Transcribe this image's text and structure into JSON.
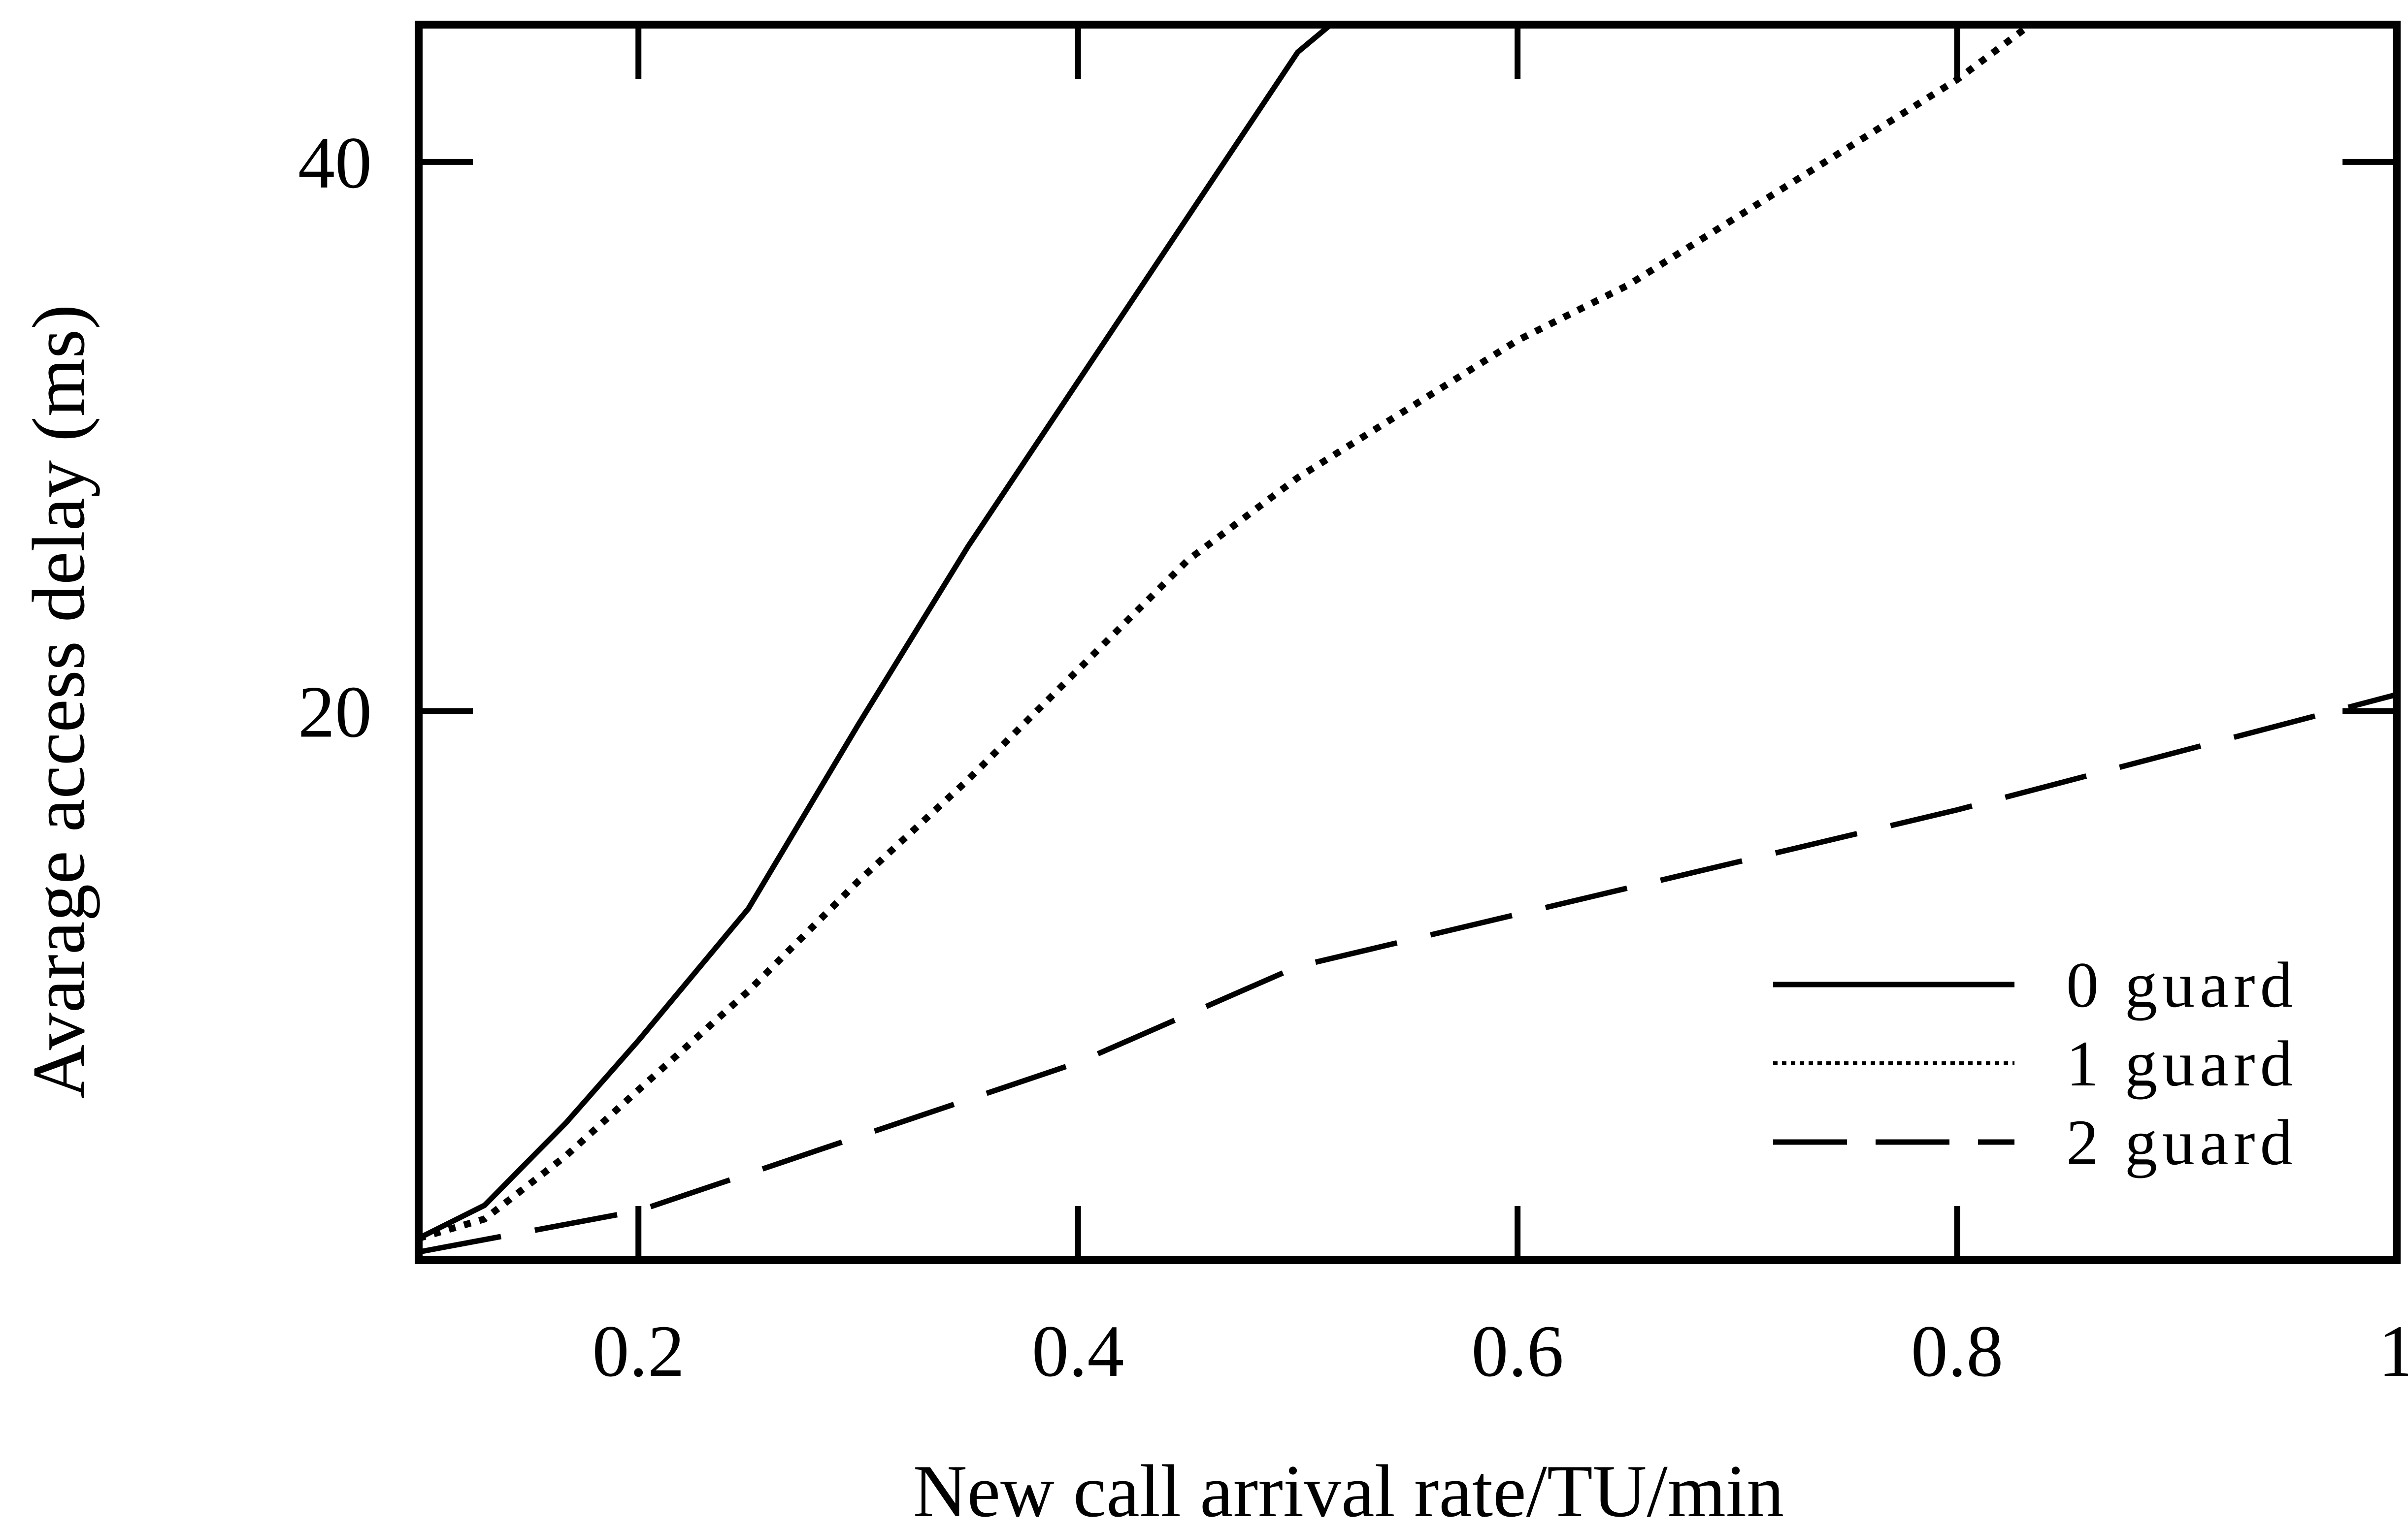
{
  "chart_data": {
    "type": "line",
    "title": "",
    "xlabel": "New call arrival rate/TU/min",
    "ylabel": "Avarage access delay  (ms)",
    "xlim": [
      0.1,
      1.0
    ],
    "ylim": [
      0,
      45
    ],
    "x_ticks": [
      0.2,
      0.4,
      0.6,
      0.8,
      1.0
    ],
    "x_tick_labels": [
      "0.2",
      "0.4",
      "0.6",
      "0.8",
      "1"
    ],
    "y_ticks": [
      20,
      40
    ],
    "y_tick_labels": [
      "20",
      "40"
    ],
    "grid": false,
    "legend_position": "bottom-right",
    "series": [
      {
        "name": "0 guard",
        "style": "solid",
        "color": "#000000",
        "x": [
          0.1,
          0.13,
          0.167,
          0.2,
          0.25,
          0.3,
          0.35,
          0.4,
          0.45,
          0.5,
          0.53
        ],
        "y": [
          0.8,
          2.0,
          5.0,
          8.0,
          12.8,
          19.5,
          26.0,
          32.0,
          38.0,
          44.0,
          46.0
        ]
      },
      {
        "name": "1 guard",
        "style": "dotted",
        "color": "#000000",
        "x": [
          0.1,
          0.13,
          0.167,
          0.2,
          0.25,
          0.3,
          0.35,
          0.4,
          0.45,
          0.5,
          0.55,
          0.6,
          0.65,
          0.7,
          0.75,
          0.8,
          0.85
        ],
        "y": [
          0.8,
          1.5,
          3.8,
          6.2,
          9.8,
          13.8,
          17.5,
          21.5,
          25.5,
          28.5,
          31.0,
          33.5,
          35.5,
          38.0,
          40.5,
          43.0,
          46.0
        ]
      },
      {
        "name": "2 guard",
        "style": "dashed",
        "color": "#000000",
        "x": [
          0.1,
          0.2,
          0.3,
          0.4,
          0.5,
          0.6,
          0.7,
          0.8,
          0.9,
          1.0
        ],
        "y": [
          0.3,
          1.8,
          4.5,
          7.2,
          10.7,
          12.6,
          14.5,
          16.4,
          18.5,
          20.6
        ]
      }
    ]
  }
}
